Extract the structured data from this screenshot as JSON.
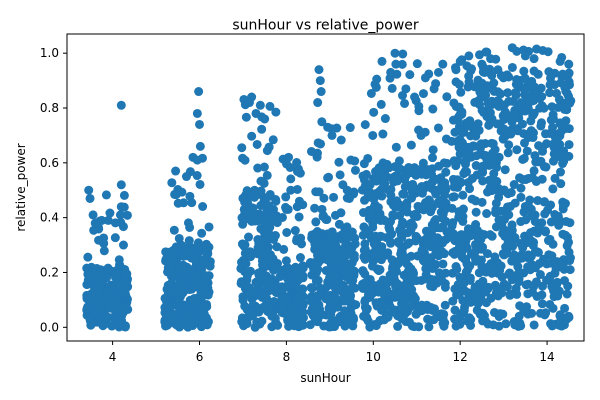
{
  "chart_data": {
    "type": "scatter",
    "title": "sunHour vs relative_power",
    "xlabel": "sunHour",
    "ylabel": "relative_power",
    "xlim": [
      2.95,
      14.85
    ],
    "ylim": [
      -0.05,
      1.07
    ],
    "xticks": [
      4,
      6,
      8,
      10,
      12,
      14
    ],
    "yticks": [
      0.0,
      0.2,
      0.4,
      0.6,
      0.8,
      1.0
    ],
    "xtick_labels": [
      "4",
      "6",
      "8",
      "10",
      "12",
      "14"
    ],
    "ytick_labels": [
      "0.0",
      "0.2",
      "0.4",
      "0.6",
      "0.8",
      "1.0"
    ],
    "grid": false,
    "marker_color": "#1f77b4",
    "clusters": [
      {
        "x_min": 3.4,
        "x_max": 4.35,
        "y_max": 0.5,
        "dense_max": 0.22
      },
      {
        "x_min": 5.2,
        "x_max": 6.25,
        "y_max": 0.62,
        "dense_max": 0.3
      },
      {
        "x_min": 6.95,
        "x_max": 7.8,
        "y_max": 0.84,
        "dense_max": 0.5
      },
      {
        "x_min": 7.85,
        "x_max": 8.4,
        "y_max": 0.62,
        "dense_max": 0.22
      },
      {
        "x_min": 8.55,
        "x_max": 9.6,
        "y_max": 0.75,
        "dense_max": 0.35
      },
      {
        "x_min": 9.75,
        "x_max": 11.05,
        "y_max": 1.0,
        "dense_max": 0.6
      },
      {
        "x_min": 11.1,
        "x_max": 11.7,
        "y_max": 0.96,
        "dense_max": 0.6
      },
      {
        "x_min": 11.8,
        "x_max": 14.55,
        "y_max": 1.02,
        "dense_max": 0.95
      }
    ],
    "points": [
      [
        3.45,
        0.5
      ],
      [
        3.48,
        0.47
      ],
      [
        4.2,
        0.81
      ],
      [
        4.2,
        0.52
      ],
      [
        4.2,
        0.44
      ],
      [
        4.18,
        0.41
      ],
      [
        3.55,
        0.41
      ],
      [
        3.6,
        0.38
      ],
      [
        3.75,
        0.39
      ],
      [
        3.9,
        0.39
      ],
      [
        4.25,
        0.3
      ],
      [
        5.45,
        0.57
      ],
      [
        5.7,
        0.55
      ],
      [
        5.85,
        0.62
      ],
      [
        5.95,
        0.61
      ],
      [
        5.95,
        0.78
      ],
      [
        5.98,
        0.86
      ],
      [
        6.0,
        0.74
      ],
      [
        6.02,
        0.66
      ],
      [
        7.2,
        0.84
      ],
      [
        7.15,
        0.82
      ],
      [
        7.3,
        0.78
      ],
      [
        7.4,
        0.81
      ],
      [
        7.5,
        0.76
      ],
      [
        8.05,
        0.62
      ],
      [
        8.1,
        0.5
      ],
      [
        8.25,
        0.44
      ],
      [
        8.0,
        0.43
      ],
      [
        8.3,
        0.46
      ],
      [
        8.75,
        0.94
      ],
      [
        8.78,
        0.9
      ],
      [
        8.8,
        0.86
      ],
      [
        8.72,
        0.82
      ],
      [
        9.3,
        0.52
      ],
      [
        9.4,
        0.5
      ],
      [
        9.45,
        0.47
      ],
      [
        8.95,
        0.73
      ],
      [
        9.05,
        0.7
      ],
      [
        10.2,
        0.97
      ],
      [
        10.5,
        1.0
      ],
      [
        10.52,
        0.96
      ],
      [
        10.75,
        0.87
      ],
      [
        10.4,
        0.93
      ],
      [
        10.95,
        0.84
      ],
      [
        11.05,
        0.79
      ],
      [
        11.1,
        0.7
      ],
      [
        11.6,
        0.96
      ],
      [
        11.5,
        0.93
      ],
      [
        11.2,
        0.91
      ],
      [
        11.4,
        0.87
      ],
      [
        12.0,
        0.97
      ],
      [
        12.2,
        0.99
      ],
      [
        12.5,
        0.96
      ],
      [
        13.2,
        1.02
      ],
      [
        13.5,
        0.99
      ],
      [
        13.9,
        1.01
      ],
      [
        14.3,
        0.97
      ],
      [
        14.5,
        0.96
      ],
      [
        12.7,
        0.98
      ],
      [
        13.7,
        0.98
      ]
    ]
  }
}
